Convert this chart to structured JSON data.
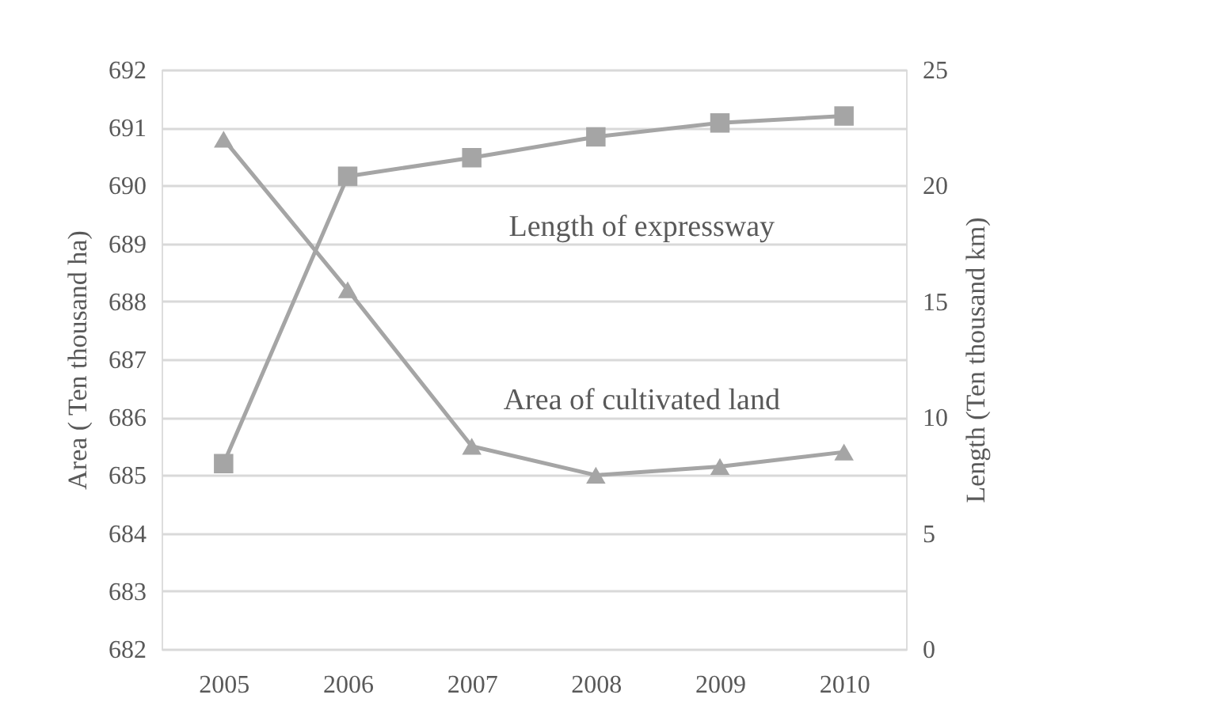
{
  "chart_data": {
    "type": "line",
    "categories": [
      "2005",
      "2006",
      "2007",
      "2008",
      "2009",
      "2010"
    ],
    "ylabel": "Area ( Ten thousand ha)",
    "y2label": "Length (Ten thousand km)",
    "ylim": [
      682,
      692
    ],
    "yticks": [
      682,
      683,
      684,
      685,
      686,
      687,
      688,
      689,
      690,
      691,
      692
    ],
    "y2lim": [
      0,
      25
    ],
    "y2ticks": [
      0,
      5,
      10,
      15,
      20,
      25
    ],
    "grid": "y",
    "legend": false,
    "line_style": "solid",
    "series": [
      {
        "name": "Area of cultivated land",
        "color": "#a5a5a5",
        "marker": "triangle",
        "values": [
          690.8,
          688.2,
          685.5,
          685.0,
          685.15,
          685.4
        ]
      },
      {
        "name": "Length of expressway",
        "color": "#a5a5a5",
        "marker": "square",
        "axis": "y2",
        "values": [
          8.0,
          20.4,
          21.2,
          22.1,
          22.7,
          23.0
        ]
      }
    ]
  }
}
